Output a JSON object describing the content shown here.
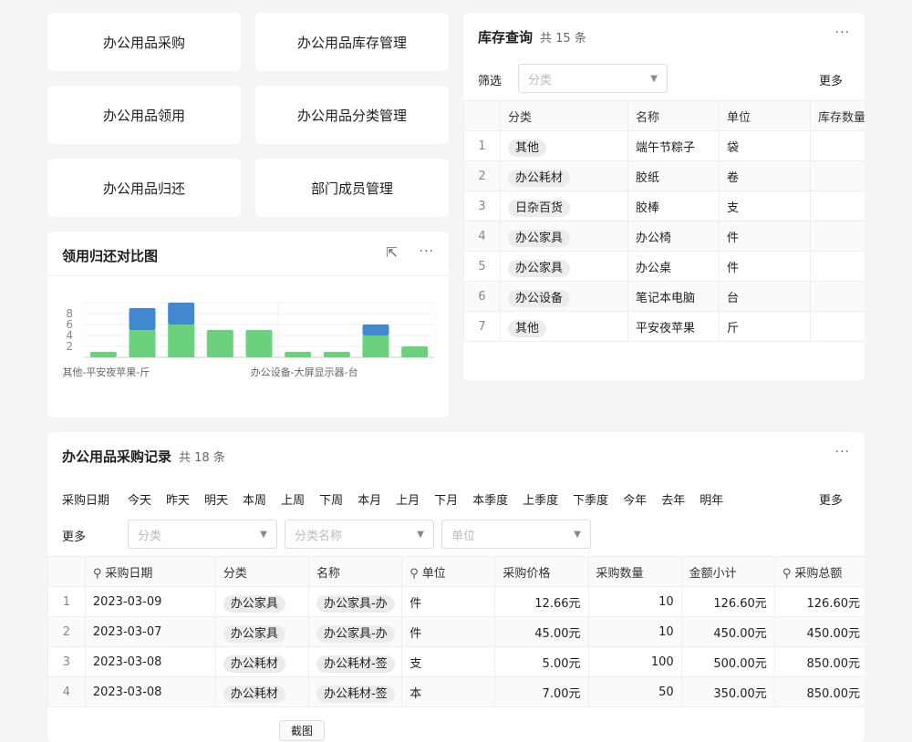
{
  "nav": [
    "办公用品采购",
    "办公用品库存管理",
    "办公用品领用",
    "办公用品分类管理",
    "办公用品归还",
    "部门成员管理"
  ],
  "chart": {
    "title": "领用归还对比图",
    "more": "···",
    "colors": {
      "green": "#6bd17f",
      "blue": "#4288d0"
    }
  },
  "chart_data": {
    "type": "bar",
    "stacked": true,
    "ylim": [
      0,
      10
    ],
    "yticks": [
      2,
      4,
      6,
      8
    ],
    "xtick_labels": [
      "其他-平安夜苹果-斤",
      "办公设备-大屏显示器-台"
    ],
    "series": [
      {
        "color": "#6bd17f",
        "values": [
          1,
          5,
          6,
          5,
          5,
          1,
          1,
          4,
          2
        ]
      },
      {
        "color": "#4288d0",
        "values": [
          0,
          4,
          4,
          0,
          0,
          0,
          0,
          2,
          0
        ]
      }
    ]
  },
  "inventory": {
    "title": "库存查询",
    "count": "共 15 条",
    "more": "···",
    "filter_label": "筛选",
    "filter_placeholder": "分类",
    "more_label": "更多",
    "columns": [
      "",
      "分类",
      "名称",
      "单位",
      "库存数量"
    ],
    "rows": [
      [
        "1",
        "其他",
        "端午节粽子",
        "袋"
      ],
      [
        "2",
        "办公耗材",
        "胶纸",
        "卷"
      ],
      [
        "3",
        "日杂百货",
        "胶棒",
        "支"
      ],
      [
        "4",
        "办公家具",
        "办公椅",
        "件"
      ],
      [
        "5",
        "办公家具",
        "办公桌",
        "件"
      ],
      [
        "6",
        "办公设备",
        "笔记本电脑",
        "台"
      ],
      [
        "7",
        "其他",
        "平安夜苹果",
        "斤"
      ]
    ]
  },
  "purchase": {
    "title": "办公用品采购记录",
    "count": "共 18 条",
    "more": "···",
    "date_label": "采购日期",
    "date_filters": [
      "今天",
      "昨天",
      "明天",
      "本周",
      "上周",
      "下周",
      "本月",
      "上月",
      "下月",
      "本季度",
      "上季度",
      "下季度",
      "今年",
      "去年",
      "明年"
    ],
    "more_label": "更多",
    "more_label2": "更多",
    "selects": [
      "分类",
      "分类名称",
      "单位"
    ],
    "columns": [
      "",
      "采购日期",
      "分类",
      "名称",
      "单位",
      "采购价格",
      "采购数量",
      "金额小计",
      "采购总额"
    ],
    "rows": [
      [
        "1",
        "2023-03-09",
        "办公家具",
        "办公家具-办",
        "件",
        "12.66元",
        "10",
        "126.60元",
        "126.60元"
      ],
      [
        "2",
        "2023-03-07",
        "办公家具",
        "办公家具-办",
        "件",
        "45.00元",
        "10",
        "450.00元",
        "450.00元"
      ],
      [
        "3",
        "2023-03-08",
        "办公耗材",
        "办公耗材-签",
        "支",
        "5.00元",
        "100",
        "500.00元",
        "850.00元"
      ],
      [
        "4",
        "2023-03-08",
        "办公耗材",
        "办公耗材-签",
        "本",
        "7.00元",
        "50",
        "350.00元",
        "850.00元"
      ]
    ],
    "bottom_button": "截图"
  }
}
